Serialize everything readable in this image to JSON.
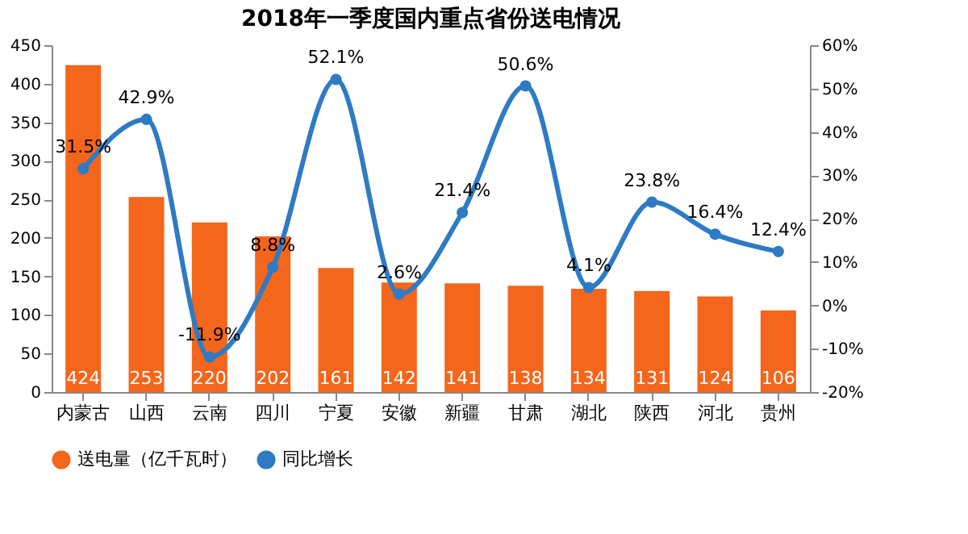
{
  "chart_data": {
    "type": "bar",
    "title": "2018年一季度国内重点省份送电情况",
    "categories": [
      "内蒙古",
      "山西",
      "云南",
      "四川",
      "宁夏",
      "安徽",
      "新疆",
      "甘肃",
      "湖北",
      "陕西",
      "河北",
      "贵州"
    ],
    "series": [
      {
        "name": "送电量（亿千瓦时）",
        "type": "bar",
        "color": "#f4661b",
        "values": [
          424,
          253,
          220,
          202,
          161,
          142,
          141,
          138,
          134,
          131,
          124,
          106
        ],
        "value_labels": [
          "424",
          "253",
          "220",
          "202",
          "161",
          "142",
          "141",
          "138",
          "134",
          "131",
          "124",
          "106"
        ]
      },
      {
        "name": "同比增长",
        "type": "line",
        "axis": "y2",
        "color": "#2e7bc4",
        "marker": "circle",
        "values": [
          31.5,
          42.9,
          -11.9,
          8.8,
          52.1,
          2.6,
          21.4,
          50.6,
          4.1,
          23.8,
          16.4,
          12.4
        ],
        "value_labels": [
          "31.5%",
          "42.9%",
          "-11.9%",
          "8.8%",
          "52.1%",
          "2.6%",
          "21.4%",
          "50.6%",
          "4.1%",
          "23.8%",
          "16.4%",
          "12.4%"
        ]
      }
    ],
    "ylim": [
      0,
      450
    ],
    "yticks": [
      0,
      50,
      100,
      150,
      200,
      250,
      300,
      350,
      400,
      450
    ],
    "y2lim": [
      -20,
      60
    ],
    "y2ticks": [
      {
        "value": -20,
        "label": "-20%"
      },
      {
        "value": -10,
        "label": "-10%"
      },
      {
        "value": 0,
        "label": "0%"
      },
      {
        "value": 10,
        "label": "10%"
      },
      {
        "value": 20,
        "label": "20%"
      },
      {
        "value": 30,
        "label": "30%"
      },
      {
        "value": 40,
        "label": "40%"
      },
      {
        "value": 50,
        "label": "50%"
      },
      {
        "value": 60,
        "label": "60%"
      }
    ],
    "legend": "bottom",
    "grid": false
  }
}
